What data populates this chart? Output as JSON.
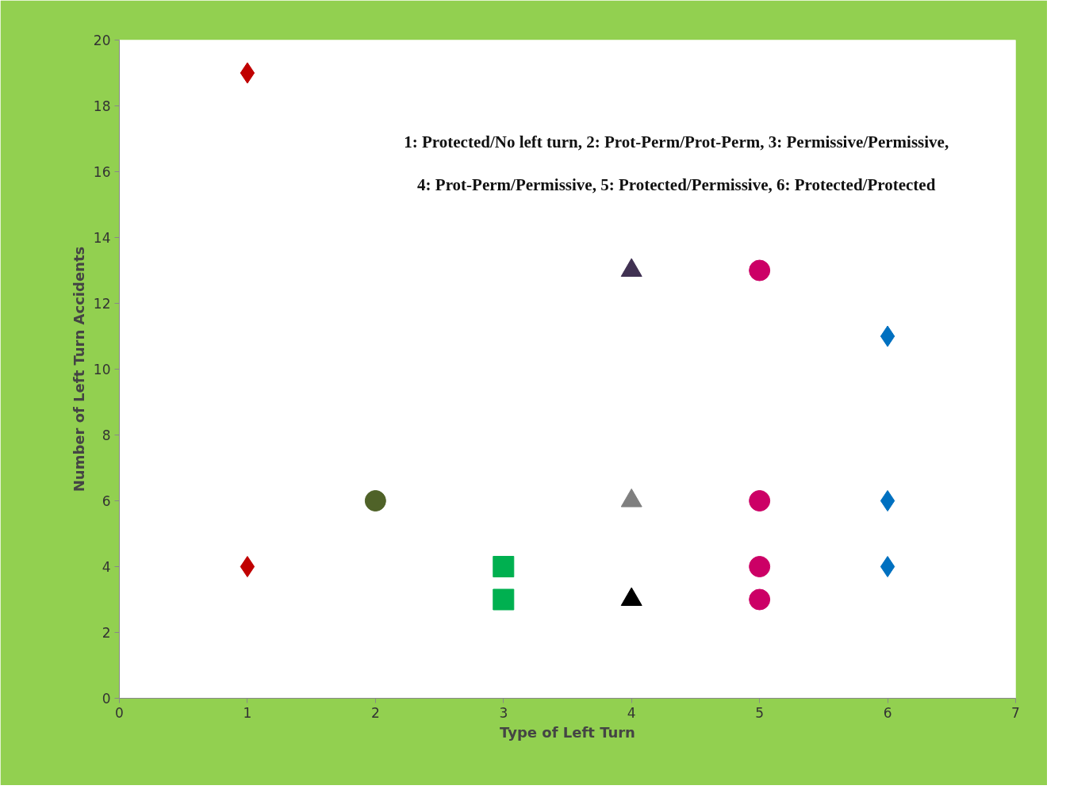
{
  "chart_data": {
    "type": "scatter",
    "xlabel": "Type of Left Turn",
    "ylabel": "Number of Left Turn Accidents",
    "xlim": [
      0,
      7
    ],
    "xticks": [
      0,
      1,
      2,
      3,
      4,
      5,
      6,
      7
    ],
    "ylim": [
      0,
      20
    ],
    "yticks": [
      0,
      2,
      4,
      6,
      8,
      10,
      12,
      14,
      16,
      18,
      20
    ],
    "grid": false,
    "annotations": [
      "1: Protected/No left turn, 2: Prot-Perm/Prot-Perm, 3: Permissive/Permissive,",
      "4: Prot-Perm/Permissive, 5: Protected/Permissive, 6: Protected/Protected"
    ],
    "series": [
      {
        "color": "#c00000",
        "marker": "diamond",
        "x": [
          1,
          1
        ],
        "values": [
          19,
          4
        ]
      },
      {
        "color": "#4f6228",
        "marker": "circle",
        "x": [
          2
        ],
        "values": [
          6
        ]
      },
      {
        "color": "#00b050",
        "marker": "square",
        "x": [
          3,
          3
        ],
        "values": [
          4,
          3
        ]
      },
      {
        "color": "#403152",
        "marker": "triangle",
        "x": [
          4
        ],
        "values": [
          13
        ]
      },
      {
        "color": "#7f7f7f",
        "marker": "triangle",
        "x": [
          4
        ],
        "values": [
          6
        ]
      },
      {
        "color": "#000000",
        "marker": "triangle",
        "x": [
          4
        ],
        "values": [
          3
        ]
      },
      {
        "color": "#cc0066",
        "marker": "circle",
        "x": [
          5,
          5,
          5,
          5
        ],
        "values": [
          13,
          6,
          4,
          3
        ]
      },
      {
        "color": "#0070c0",
        "marker": "diamond",
        "x": [
          6,
          6,
          6
        ],
        "values": [
          11,
          6,
          4
        ]
      }
    ]
  }
}
